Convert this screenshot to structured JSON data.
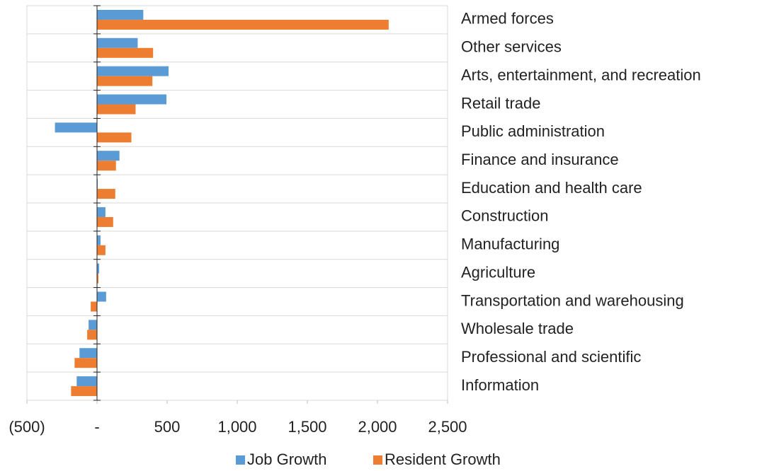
{
  "chart_data": {
    "type": "bar",
    "orientation": "horizontal",
    "categories": [
      "Armed forces",
      "Other services",
      "Arts, entertainment, and recreation",
      "Retail trade",
      "Public administration",
      "Finance and insurance",
      "Education and health care",
      "Construction",
      "Manufacturing",
      "Agriculture",
      "Transportation and warehousing",
      "Wholesale trade",
      "Professional and scientific",
      "Information"
    ],
    "series": [
      {
        "name": "Job Growth",
        "color": "#5b9bd5",
        "values": [
          330,
          290,
          510,
          495,
          -300,
          160,
          5,
          60,
          25,
          15,
          65,
          -60,
          -125,
          -145
        ]
      },
      {
        "name": "Resident Growth",
        "color": "#ed7d31",
        "values": [
          2080,
          400,
          395,
          275,
          245,
          135,
          130,
          115,
          60,
          10,
          -45,
          -70,
          -160,
          -185
        ]
      }
    ],
    "xlim": [
      -500,
      2500
    ],
    "xticks": [
      {
        "value": -500,
        "label": "(500)"
      },
      {
        "value": 0,
        "label": "-"
      },
      500,
      {
        "value": 1000,
        "label": "1,000"
      },
      {
        "value": 1500,
        "label": "1,500"
      },
      {
        "value": 2000,
        "label": "2,000"
      },
      {
        "value": 2500,
        "label": "2,500"
      }
    ],
    "legend": "bottom"
  }
}
